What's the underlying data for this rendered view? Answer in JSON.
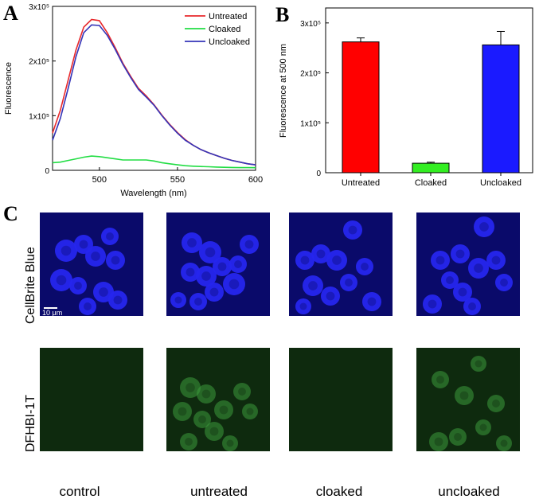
{
  "panels": {
    "a": "A",
    "b": "B",
    "c": "C"
  },
  "chart_data": [
    {
      "type": "line",
      "xlabel": "Wavelength (nm)",
      "ylabel": "Fluorescence",
      "xlim": [
        470,
        600
      ],
      "ylim": [
        0,
        300000
      ],
      "x_ticks": [
        "500",
        "550",
        "600"
      ],
      "y_ticks": [
        "0",
        "1x10⁵",
        "2x10⁵",
        "3x10⁵"
      ],
      "legend": "top-right",
      "series": [
        {
          "name": "Untreated",
          "color": "#e8282b",
          "x": [
            470,
            475,
            480,
            485,
            490,
            495,
            500,
            505,
            510,
            515,
            520,
            525,
            530,
            535,
            540,
            545,
            550,
            555,
            560,
            565,
            570,
            575,
            580,
            585,
            590,
            595,
            600
          ],
          "y": [
            68000,
            110000,
            165000,
            220000,
            262000,
            276000,
            274000,
            252000,
            225000,
            196000,
            172000,
            150000,
            136000,
            120000,
            101000,
            84000,
            69000,
            56000,
            46000,
            38000,
            32000,
            27000,
            22000,
            18000,
            15000,
            12000,
            10000
          ]
        },
        {
          "name": "Cloaked",
          "color": "#22dd44",
          "x": [
            470,
            475,
            480,
            485,
            490,
            495,
            500,
            505,
            510,
            515,
            520,
            525,
            530,
            535,
            540,
            545,
            550,
            555,
            560,
            565,
            570,
            575,
            580,
            585,
            590,
            595,
            600
          ],
          "y": [
            14000,
            15000,
            18000,
            21000,
            24000,
            26000,
            25000,
            23000,
            21000,
            19000,
            19000,
            19000,
            19000,
            17000,
            14000,
            12000,
            10000,
            8500,
            7500,
            7000,
            6500,
            6000,
            5500,
            5200,
            5000,
            4900,
            4800
          ]
        },
        {
          "name": "Uncloaked",
          "color": "#3434b8",
          "x": [
            470,
            475,
            480,
            485,
            490,
            495,
            500,
            505,
            510,
            515,
            520,
            525,
            530,
            535,
            540,
            545,
            550,
            555,
            560,
            565,
            570,
            575,
            580,
            585,
            590,
            595,
            600
          ],
          "y": [
            55000,
            95000,
            150000,
            208000,
            252000,
            266000,
            265000,
            247000,
            222000,
            194000,
            170000,
            148000,
            134000,
            119000,
            100000,
            83000,
            68000,
            55000,
            46000,
            38000,
            32000,
            27000,
            22000,
            18000,
            15000,
            12000,
            10000
          ]
        }
      ]
    },
    {
      "type": "bar",
      "ylabel": "Fluorescence at 500 nm",
      "ylim": [
        0,
        330000
      ],
      "y_ticks": [
        "0",
        "1x10⁵",
        "2x10⁵",
        "3x10⁵"
      ],
      "categories": [
        "Untreated",
        "Cloaked",
        "Uncloaked"
      ],
      "values": [
        262000,
        19000,
        256000
      ],
      "errors": [
        8000,
        2000,
        27000
      ],
      "colors": [
        "#ff0000",
        "#33ee22",
        "#1a1aff"
      ]
    }
  ],
  "micrographs": {
    "row_labels": [
      "CellBrite Blue",
      "DFHBI-1T"
    ],
    "column_labels": [
      "control",
      "untreated",
      "cloaked",
      "uncloaked"
    ],
    "scale_bar": "10 μm",
    "colors": {
      "blue_bg": "#0a0a6a",
      "blue_cell": "#2626ee",
      "green_bg": "#0e2a0e",
      "green_cell": "#3c9a3c"
    }
  }
}
